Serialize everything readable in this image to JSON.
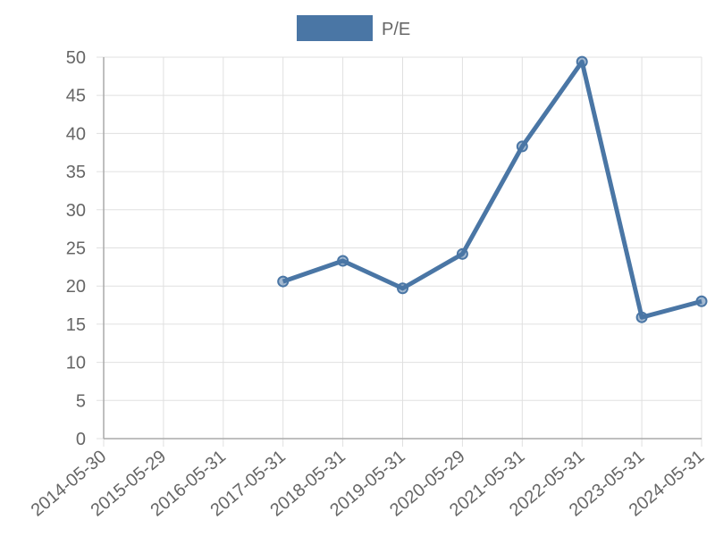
{
  "chart_data": {
    "type": "line",
    "categories": [
      "2014-05-30",
      "2015-05-29",
      "2016-05-31",
      "2017-05-31",
      "2018-05-31",
      "2019-05-31",
      "2020-05-29",
      "2021-05-31",
      "2022-05-31",
      "2023-05-31",
      "2024-05-31"
    ],
    "series": [
      {
        "name": "P/E",
        "color": "#4a76a5",
        "values": [
          null,
          null,
          null,
          20.6,
          23.3,
          19.7,
          24.2,
          38.3,
          49.4,
          15.9,
          18.0
        ]
      }
    ],
    "ylim": [
      0,
      50
    ],
    "yticks": [
      0,
      5,
      10,
      15,
      20,
      25,
      30,
      35,
      40,
      45,
      50
    ],
    "grid": true,
    "legend": "top"
  }
}
